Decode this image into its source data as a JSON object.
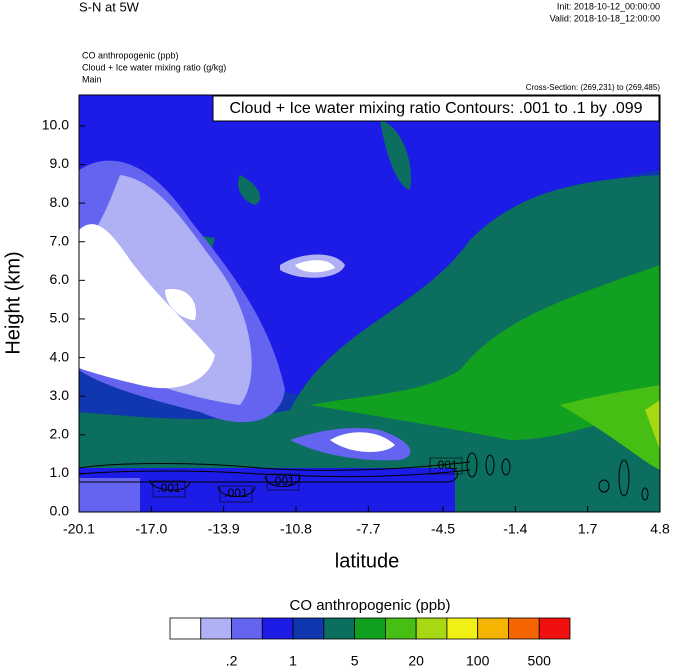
{
  "header": {
    "title": "S-N at 5W",
    "init": "Init: 2018-10-12_00:00:00",
    "valid": "Valid: 2018-10-18_12:00:00",
    "fields": [
      "CO anthropogenic   (ppb)",
      "Cloud + Ice water mixing ratio   (g/kg)",
      "Main"
    ],
    "cross_section": "Cross-Section: (269,231) to (269,485)"
  },
  "chart_data": {
    "type": "contour",
    "annotation": "Cloud + Ice water mixing ratio Contours: .001 to .1 by .099",
    "xlabel": "latitude",
    "ylabel": "Height (km)",
    "xlim": [
      -20.1,
      4.8
    ],
    "ylim": [
      0,
      10.8
    ],
    "xticks": [
      -20.1,
      {
        "value": -17,
        "label": "-17.0"
      },
      -13.9,
      -10.8,
      -7.7,
      -4.5,
      -1.4,
      1.7,
      4.8
    ],
    "yticks": [
      {
        "value": 0,
        "label": "0.0"
      },
      {
        "value": 1,
        "label": "1.0"
      },
      {
        "value": 2,
        "label": "2.0"
      },
      {
        "value": 3,
        "label": "3.0"
      },
      {
        "value": 4,
        "label": "4.0"
      },
      {
        "value": 5,
        "label": "5.0"
      },
      {
        "value": 6,
        "label": "6.0"
      },
      {
        "value": 7,
        "label": "7.0"
      },
      {
        "value": 8,
        "label": "8.0"
      },
      {
        "value": 9,
        "label": "9.0"
      },
      {
        "value": 10,
        "label": "10.0"
      }
    ],
    "contour_labels": [
      ".001",
      ".001",
      ".001",
      ".001"
    ],
    "colorbar": {
      "title": "CO anthropogenic  (ppb)",
      "colors": [
        "#ffffff",
        "#b0b0f4",
        "#6464f0",
        "#1c1ce6",
        "#1036b0",
        "#0c6e5e",
        "#12a020",
        "#46be14",
        "#a6d814",
        "#f0f014",
        "#f4b400",
        "#f46400",
        "#f01010"
      ],
      "ticks": [
        {
          "value": 0.2,
          "label": ".2"
        },
        1,
        5,
        20,
        100,
        500
      ]
    }
  }
}
